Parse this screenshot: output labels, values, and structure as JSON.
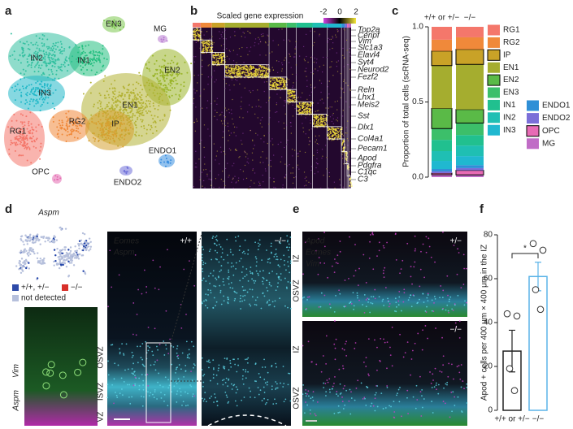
{
  "panel_labels": [
    "a",
    "b",
    "c",
    "d",
    "e",
    "f"
  ],
  "tsne": {
    "clusters": [
      "EN3",
      "MG",
      "IN2",
      "IN1",
      "EN2",
      "IN3",
      "EN1",
      "RG1",
      "RG2",
      "IP",
      "ENDO1",
      "OPC",
      "ENDO2"
    ]
  },
  "heatmap": {
    "title": "Scaled gene expression",
    "colorbar_ticks": [
      -2,
      0,
      2
    ],
    "genes": [
      "Top2a",
      "Cenpf",
      "Vim",
      "Slc1a3",
      "Elavl4",
      "Syt4",
      "Neurod2",
      "Fezf2",
      "Reln",
      "Lhx1",
      "Meis2",
      "Sst",
      "Dlx1",
      "Col4a1",
      "Pecam1",
      "Apod",
      "Pdgfra",
      "C1qc",
      "C3"
    ]
  },
  "panel_d": {
    "title": "Aspm",
    "legend": [
      "+/+, +/−",
      "−/−",
      "not detected"
    ],
    "inset_labels": [
      "Aspm",
      "Vim"
    ],
    "stains": [
      "Eomes",
      "Aspm"
    ],
    "genotypes": [
      "+/+",
      "−/−"
    ],
    "zones": [
      "OSVZ",
      "ISVZ",
      "VZ"
    ]
  },
  "panel_e": {
    "stains": [
      "Apod",
      "Eomes",
      "Vim"
    ],
    "genotypes": [
      "+/−",
      "−/−"
    ],
    "zones_top": [
      "IZ",
      "OSVZ"
    ],
    "zones_bottom": [
      "IZ",
      "OSVZ"
    ]
  },
  "chart_data": [
    {
      "type": "stacked_bar",
      "ylabel": "Proportion of total cells (scRNA-seq)",
      "categories": [
        "+/+ or +/−",
        "−/−"
      ],
      "ylim": [
        0,
        1
      ],
      "yticks": [
        {
          "value": 0,
          "label": "0.0"
        },
        0.5,
        {
          "value": 1,
          "label": "1.0"
        }
      ],
      "series": [
        {
          "name": "RG1",
          "color": "#f4776b",
          "values": [
            0.086,
            0.07
          ]
        },
        {
          "name": "RG2",
          "color": "#f0893a",
          "values": [
            0.075,
            0.08
          ]
        },
        {
          "name": "IP",
          "color": "#c9a227",
          "values": [
            0.097,
            0.1
          ],
          "outlined": true
        },
        {
          "name": "EN1",
          "color": "#a5ad2f",
          "values": [
            0.285,
            0.3
          ]
        },
        {
          "name": "EN2",
          "color": "#5aba47",
          "values": [
            0.134,
            0.09
          ],
          "outlined": true
        },
        {
          "name": "EN3",
          "color": "#3cbf6a",
          "values": [
            0.075,
            0.08
          ]
        },
        {
          "name": "IN1",
          "color": "#21c08f",
          "values": [
            0.075,
            0.07
          ]
        },
        {
          "name": "IN2",
          "color": "#1fbfb3",
          "values": [
            0.065,
            0.07
          ]
        },
        {
          "name": "IN3",
          "color": "#20b8d0",
          "values": [
            0.054,
            0.06
          ]
        },
        {
          "name": "ENDO1",
          "color": "#2f8fd6",
          "values": [
            0.016,
            0.02
          ]
        },
        {
          "name": "ENDO2",
          "color": "#7b6fd8",
          "values": [
            0.011,
            0.015
          ]
        },
        {
          "name": "OPC",
          "color": "#e86bb5",
          "values": [
            0.011,
            0.03
          ],
          "outlined": true
        },
        {
          "name": "MG",
          "color": "#c06cc6",
          "values": [
            0.016,
            0.015
          ]
        }
      ]
    },
    {
      "type": "bar",
      "ylabel": "Apod + cells per 400 μm × 400 μm in the IZ",
      "categories": [
        "+/+ or +/−",
        "−/−"
      ],
      "values": [
        27,
        61
      ],
      "errors": [
        9.5,
        6.5
      ],
      "points": [
        [
          44,
          43,
          19,
          9
        ],
        [
          76,
          73,
          55,
          46
        ]
      ],
      "colors": [
        "#222222",
        "#5bb4e8"
      ],
      "ylim": [
        0,
        80
      ],
      "yticks": [
        0,
        20,
        40,
        60,
        80
      ],
      "significance": "*"
    }
  ]
}
